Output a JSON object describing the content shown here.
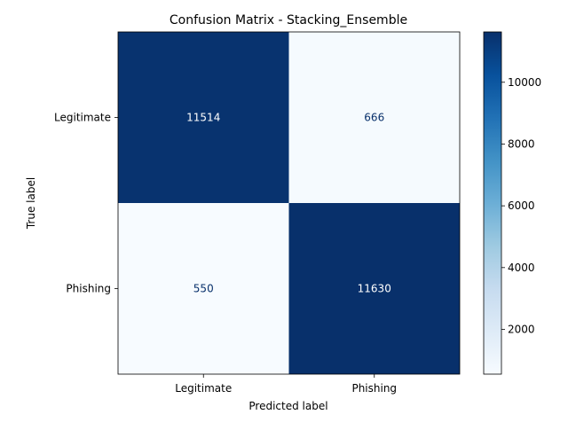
{
  "chart_data": {
    "type": "heatmap",
    "title": "Confusion Matrix - Stacking_Ensemble",
    "xlabel": "Predicted label",
    "ylabel": "True label",
    "x_categories": [
      "Legitimate",
      "Phishing"
    ],
    "y_categories": [
      "Legitimate",
      "Phishing"
    ],
    "values": [
      [
        11514,
        666
      ],
      [
        550,
        11630
      ]
    ],
    "colormap": "Blues",
    "colorbar": {
      "range": [
        550,
        11630
      ],
      "ticks": [
        2000,
        4000,
        6000,
        8000,
        10000
      ]
    },
    "text_colors": {
      "dark_cell": "#ffffff",
      "light_cell": "#08306b"
    }
  }
}
